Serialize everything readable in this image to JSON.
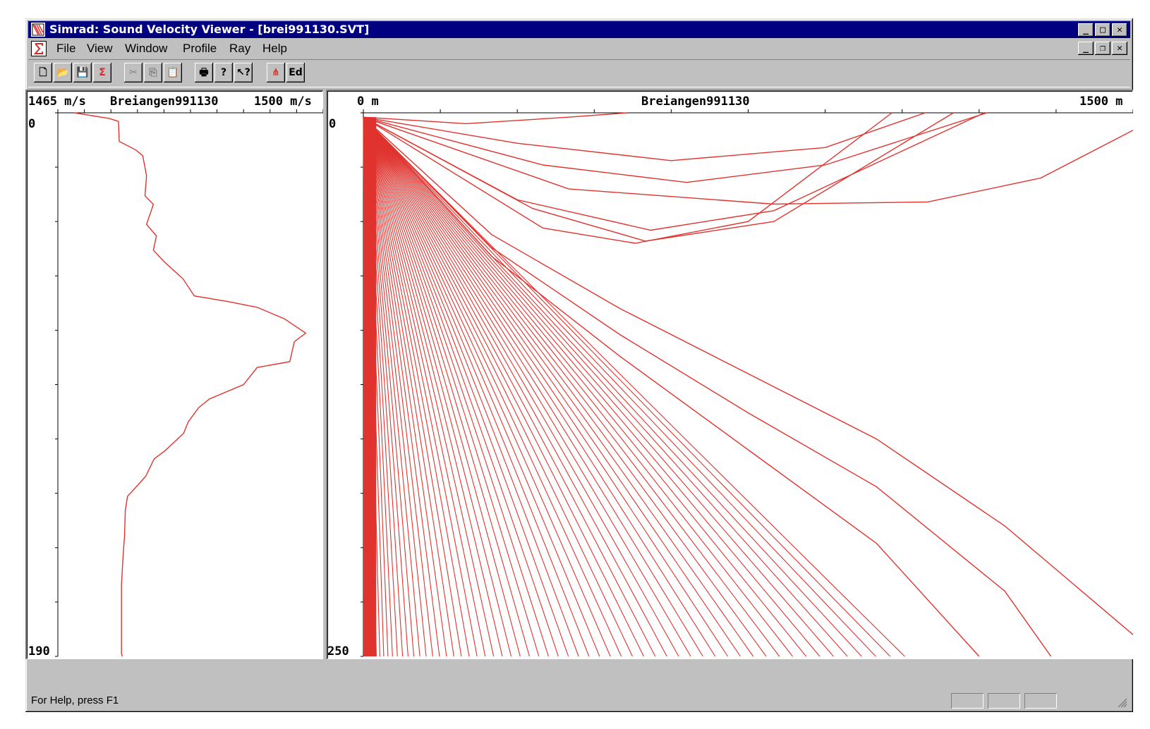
{
  "window": {
    "title": "Simrad: Sound Velocity Viewer - [brei991130.SVT]",
    "controls": [
      "_",
      "□",
      "✕"
    ],
    "mdi_controls": [
      "_",
      "❐",
      "✕"
    ]
  },
  "menu": {
    "items": [
      "File",
      "View",
      "Window",
      "Profile",
      "Ray",
      "Help"
    ]
  },
  "toolbar": {
    "buttons": [
      {
        "icon": "new-file-icon",
        "glyph": "🗋",
        "enabled": true
      },
      {
        "icon": "open-folder-icon",
        "glyph": "📂",
        "enabled": true
      },
      {
        "icon": "save-icon",
        "glyph": "💾",
        "enabled": true
      },
      {
        "icon": "sigma-icon",
        "glyph": "Σ",
        "enabled": true
      },
      {
        "icon": "cut-icon",
        "glyph": "✂",
        "enabled": false
      },
      {
        "icon": "copy-icon",
        "glyph": "⎘",
        "enabled": false
      },
      {
        "icon": "paste-icon",
        "glyph": "📋",
        "enabled": false
      },
      {
        "icon": "print-icon",
        "glyph": "🖶",
        "enabled": true
      },
      {
        "icon": "help-icon",
        "glyph": "?",
        "enabled": true
      },
      {
        "icon": "context-help-icon",
        "glyph": "↖?",
        "enabled": true
      },
      {
        "icon": "ray-trace-icon",
        "glyph": "⋔",
        "enabled": true
      },
      {
        "icon": "edit-icon",
        "glyph": "Ed",
        "enabled": true
      }
    ]
  },
  "colors": {
    "accent": "#000080",
    "trace": "#e0332e",
    "window_bg": "#c0c0c0"
  },
  "profile_pane": {
    "label_left": "1465 m/s",
    "label_center": "Breiangen991130",
    "label_right": "1500 m/s",
    "depth_top": "0",
    "depth_bottom": "190"
  },
  "ray_pane": {
    "label_left": "0 m",
    "label_center": "Breiangen991130",
    "label_right": "1500 m",
    "depth_top": "0",
    "depth_bottom": "250"
  },
  "chart_data": [
    {
      "type": "line",
      "title": "Breiangen991130",
      "xlabel": "",
      "ylabel": "",
      "xlim": [
        1465,
        1500
      ],
      "ylim": [
        0,
        190
      ],
      "x_tick_labels": [
        "1465 m/s",
        "1500 m/s"
      ],
      "y_tick_labels": [
        "0",
        "190"
      ],
      "series": [
        {
          "x": [
            1467.2,
            1471.8,
            1473.0,
            1473.1,
            1475.3,
            1476.2,
            1476.7,
            1476.5,
            1477.6,
            1476.7,
            1478.0,
            1477.6,
            1479.0,
            1481.5,
            1483.0,
            1487.5,
            1491.3,
            1494.9,
            1497.7,
            1496.2,
            1495.6,
            1491.3,
            1489.5,
            1485.0,
            1483.6,
            1482.2,
            1481.6,
            1479.2,
            1477.7,
            1476.6,
            1475.6,
            1474.2,
            1473.9,
            1473.8,
            1473.6,
            1473.4,
            1473.4,
            1473.4,
            1473.4,
            1473.5
          ],
          "y": [
            0,
            2,
            3,
            10,
            13,
            15,
            22,
            29,
            32,
            39,
            43,
            48,
            52,
            58,
            64,
            66,
            68,
            72,
            77,
            80,
            87,
            89,
            95,
            100,
            103,
            108,
            112,
            118,
            121,
            127,
            130,
            134,
            139,
            148,
            155,
            165,
            175,
            183,
            189,
            190
          ]
        }
      ]
    },
    {
      "type": "line",
      "title": "Breiangen991130",
      "xlabel": "",
      "ylabel": "",
      "xlim": [
        0,
        1500
      ],
      "ylim": [
        0,
        250
      ],
      "x_tick_labels": [
        "0 m",
        "1500 m"
      ],
      "y_tick_labels": [
        "0",
        "250"
      ],
      "series": [
        {
          "name": "",
          "x": [
            0,
            200,
            400,
            515
          ],
          "y": [
            2,
            5,
            2,
            0
          ]
        },
        {
          "name": "",
          "x": [
            0,
            300,
            600,
            900,
            1095
          ],
          "y": [
            2,
            14,
            22,
            16,
            0
          ]
        },
        {
          "name": "",
          "x": [
            0,
            350,
            630,
            900,
            1215
          ],
          "y": [
            2,
            24,
            32,
            24,
            0
          ]
        },
        {
          "name": "",
          "x": [
            0,
            300,
            560,
            800,
            1210
          ],
          "y": [
            2,
            40,
            54,
            45,
            0
          ]
        },
        {
          "name": "",
          "x": [
            0,
            330,
            550,
            800,
            1150
          ],
          "y": [
            2,
            44,
            59,
            50,
            0
          ]
        },
        {
          "name": "",
          "x": [
            0,
            350,
            530,
            750,
            1030
          ],
          "y": [
            2,
            53,
            60,
            50,
            0
          ]
        },
        {
          "name": "",
          "x": [
            0,
            400,
            800,
            1100,
            1320,
            1500
          ],
          "y": [
            2,
            35,
            42,
            41,
            30,
            8
          ]
        },
        {
          "name": "",
          "x": [
            0,
            250,
            500,
            750,
            1000,
            1250,
            1500
          ],
          "y": [
            2,
            56,
            90,
            120,
            150,
            190,
            240
          ]
        },
        {
          "name": "",
          "x": [
            0,
            250,
            500,
            750,
            1000,
            1250,
            1340
          ],
          "y": [
            2,
            62,
            102,
            138,
            172,
            220,
            250
          ]
        },
        {
          "name": "",
          "x": [
            0,
            250,
            500,
            750,
            1000,
            1200
          ],
          "y": [
            2,
            66,
            112,
            155,
            198,
            250
          ]
        }
      ]
    }
  ],
  "statusbar": {
    "text": "For Help, press F1"
  }
}
